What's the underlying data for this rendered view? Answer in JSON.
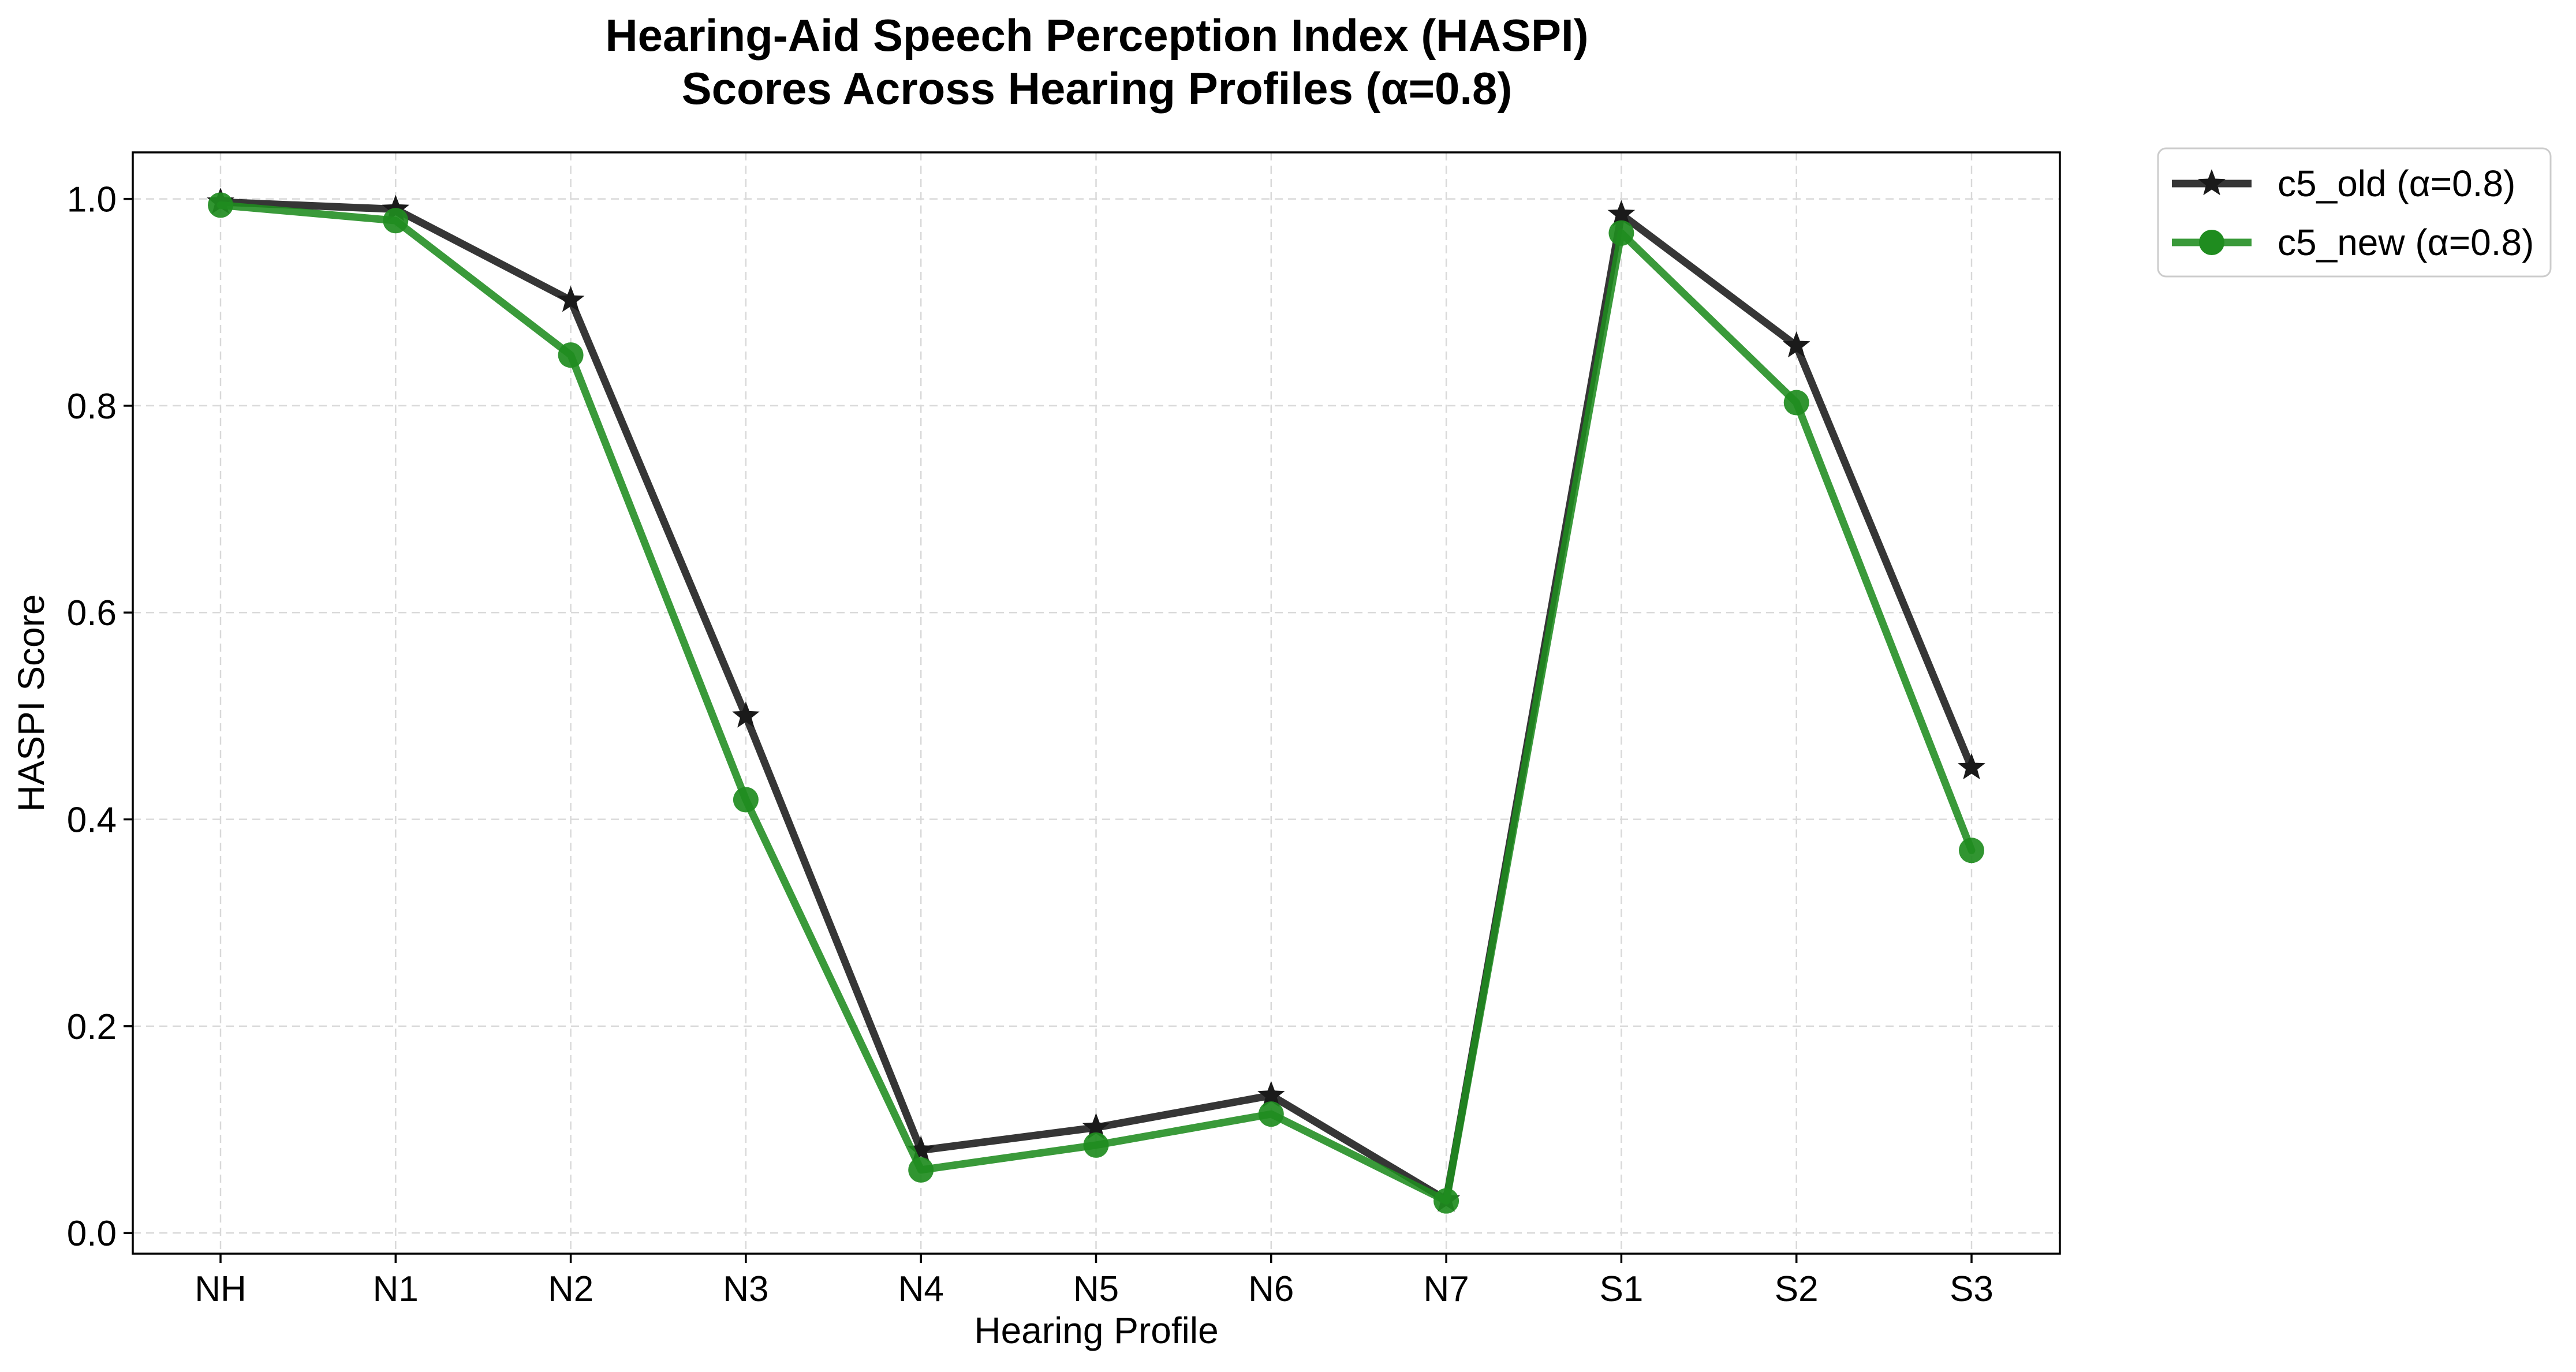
{
  "chart_data": {
    "type": "line",
    "title_lines": [
      "Hearing-Aid Speech Perception Index (HASPI)",
      "Scores Across Hearing Profiles (α=0.8)"
    ],
    "xlabel": "Hearing Profile",
    "ylabel": "HASPI Score",
    "categories": [
      "NH",
      "N1",
      "N2",
      "N3",
      "N4",
      "N5",
      "N6",
      "N7",
      "S1",
      "S2",
      "S3"
    ],
    "ylim": [
      -0.02,
      1.045
    ],
    "yticks": [
      0.0,
      0.2,
      0.4,
      0.6,
      0.8,
      1.0
    ],
    "ytick_labels": [
      "0.0",
      "0.2",
      "0.4",
      "0.6",
      "0.8",
      "1.0"
    ],
    "grid": true,
    "legend_position": "outside-top-right",
    "series": [
      {
        "name": "c5_old (α=0.8)",
        "marker": "star",
        "color": "#1a1a1a",
        "values": [
          0.997,
          0.99,
          0.902,
          0.5,
          0.08,
          0.102,
          0.133,
          0.032,
          0.985,
          0.858,
          0.45
        ]
      },
      {
        "name": "c5_new (α=0.8)",
        "marker": "circle",
        "color": "#1f8c1f",
        "values": [
          0.994,
          0.979,
          0.849,
          0.419,
          0.061,
          0.085,
          0.115,
          0.031,
          0.967,
          0.803,
          0.37
        ]
      }
    ]
  }
}
